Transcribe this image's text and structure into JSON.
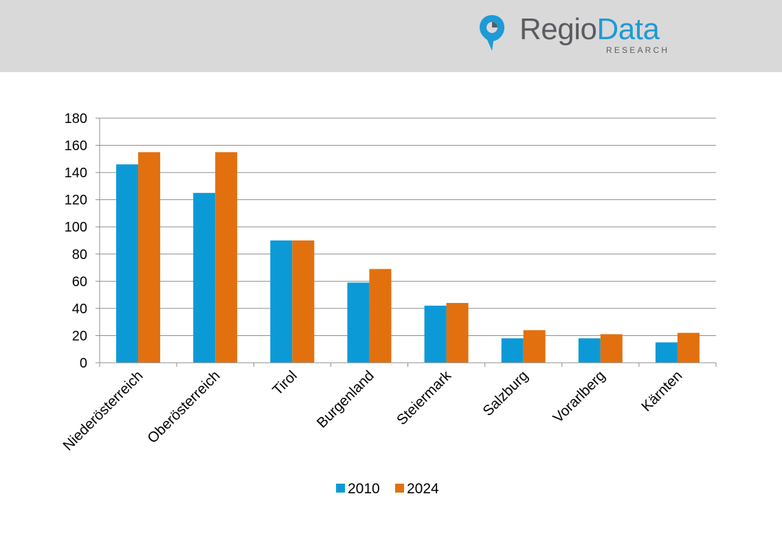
{
  "logo": {
    "word_regio": "Regio",
    "word_data": "Data",
    "sub": "RESEARCH"
  },
  "colors": {
    "header_bg": "#d9d9da",
    "series_2010": "#0c9ad7",
    "series_2024": "#e2700f",
    "grid": "#8c8c8c"
  },
  "chart_data": {
    "type": "bar",
    "categories": [
      "Niederösterreich",
      "Oberösterreich",
      "Tirol",
      "Burgenland",
      "Steiermark",
      "Salzburg",
      "Vorarlberg",
      "Kärnten"
    ],
    "series": [
      {
        "name": "2010",
        "values": [
          146,
          125,
          90,
          59,
          42,
          18,
          18,
          15
        ]
      },
      {
        "name": "2024",
        "values": [
          155,
          155,
          90,
          69,
          44,
          24,
          21,
          22
        ]
      }
    ],
    "ylim": [
      0,
      180
    ],
    "yticks": [
      0,
      20,
      40,
      60,
      80,
      100,
      120,
      140,
      160,
      180
    ],
    "grid": true,
    "legend": "bottom-center"
  }
}
